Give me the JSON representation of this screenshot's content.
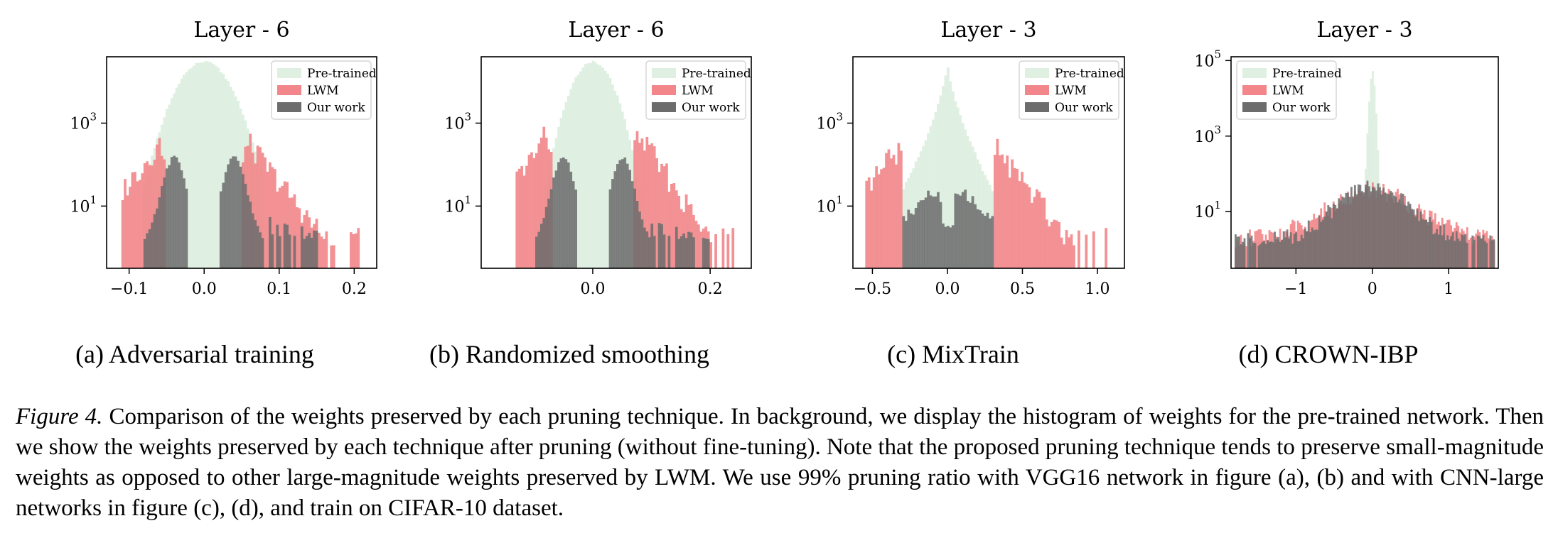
{
  "colors": {
    "pretrained": "#dff0e2",
    "lwm": "#f2868a",
    "ours": "#6c6c6c",
    "axis": "#000000"
  },
  "legend": [
    "Pre-trained",
    "LWM",
    "Our work"
  ],
  "panels": [
    {
      "id": "a",
      "title": "Layer - 6",
      "subcaption": "(a) Adversarial training"
    },
    {
      "id": "b",
      "title": "Layer - 6",
      "subcaption": "(b) Randomized smoothing"
    },
    {
      "id": "c",
      "title": "Layer - 3",
      "subcaption": "(c) MixTrain"
    },
    {
      "id": "d",
      "title": "Layer - 3",
      "subcaption": "(d) CROWN-IBP"
    }
  ],
  "caption": {
    "label": "Figure 4.",
    "text": "Comparison of the weights preserved by each pruning technique. In background, we display the histogram of weights for the pre-trained network. Then we show the weights preserved by each technique after pruning (without fine-tuning). Note that the proposed pruning technique tends to preserve small-magnitude weights as opposed to other large-magnitude weights preserved by LWM. We use 99% pruning ratio with VGG16 network in figure (a), (b) and with CNN-large networks in figure (c), (d), and train on CIFAR-10 dataset."
  },
  "chart_data": [
    {
      "type": "histogram",
      "title": "Layer - 6",
      "xlim": [
        -0.13,
        0.23
      ],
      "xticks": [
        -0.1,
        0.0,
        0.1,
        0.2
      ],
      "xtick_labels": [
        "−0.1",
        "0.0",
        "0.1",
        "0.2"
      ],
      "yscale": "log",
      "ylim_exp": [
        -0.5,
        4.6
      ],
      "yticks_exp": [
        1,
        3
      ],
      "legend_position": "top-right",
      "series": [
        {
          "name": "Pre-trained",
          "peak_x": 0.0,
          "peak_count": 30000,
          "x_range": [
            -0.08,
            0.08
          ]
        },
        {
          "name": "LWM",
          "modes": [
            -0.06,
            0.06
          ],
          "mode_count": 300,
          "x_range": [
            -0.11,
            0.21
          ],
          "center_gap": [
            -0.05,
            0.05
          ]
        },
        {
          "name": "Our work",
          "modes": [
            -0.04,
            0.04
          ],
          "mode_count": 150,
          "x_range": [
            -0.1,
            0.15
          ]
        }
      ]
    },
    {
      "type": "histogram",
      "title": "Layer - 6",
      "xlim": [
        -0.19,
        0.27
      ],
      "xticks": [
        0.0,
        0.2
      ],
      "xtick_labels": [
        "0.0",
        "0.2"
      ],
      "yscale": "log",
      "ylim_exp": [
        -0.5,
        4.6
      ],
      "yticks_exp": [
        1,
        3
      ],
      "legend_position": "top-right",
      "series": [
        {
          "name": "Pre-trained",
          "peak_x": 0.0,
          "peak_count": 30000,
          "x_range": [
            -0.08,
            0.08
          ]
        },
        {
          "name": "LWM",
          "modes": [
            -0.08,
            0.08
          ],
          "mode_count": 500,
          "x_range": [
            -0.13,
            0.24
          ],
          "center_gap": [
            -0.07,
            0.07
          ]
        },
        {
          "name": "Our work",
          "modes": [
            -0.05,
            0.05
          ],
          "mode_count": 150,
          "x_range": [
            -0.12,
            0.2
          ]
        }
      ]
    },
    {
      "type": "histogram",
      "title": "Layer - 3",
      "xlim": [
        -0.63,
        1.18
      ],
      "xticks": [
        -0.5,
        0.0,
        0.5,
        1.0
      ],
      "xtick_labels": [
        "−0.5",
        "0.0",
        "0.5",
        "1.0"
      ],
      "yscale": "log",
      "ylim_exp": [
        -0.5,
        4.6
      ],
      "yticks_exp": [
        1,
        3
      ],
      "legend_position": "top-right",
      "series": [
        {
          "name": "Pre-trained",
          "peak_x": 0.0,
          "peak_count": 30000,
          "x_range": [
            -0.3,
            0.3
          ]
        },
        {
          "name": "LWM",
          "modes": [
            -0.3,
            0.3
          ],
          "mode_count": 300,
          "x_range": [
            -0.55,
            1.07
          ],
          "center_gap": [
            -0.3,
            0.3
          ]
        },
        {
          "name": "Our work",
          "modes": [
            -0.1,
            0.1
          ],
          "mode_count": 20,
          "x_range": [
            -0.3,
            0.3
          ]
        }
      ]
    },
    {
      "type": "histogram",
      "title": "Layer - 3",
      "xlim": [
        -1.85,
        1.65
      ],
      "xticks": [
        -1,
        0,
        1
      ],
      "xtick_labels": [
        "−1",
        "0",
        "1"
      ],
      "yscale": "log",
      "ylim_exp": [
        -0.5,
        5.1
      ],
      "yticks_exp": [
        1,
        3,
        5
      ],
      "legend_position": "top-left",
      "series": [
        {
          "name": "Pre-trained",
          "peak_x": 0.0,
          "peak_count": 50000,
          "x_range": [
            -0.2,
            0.2
          ]
        },
        {
          "name": "LWM",
          "modes": [
            -0.5,
            0.5
          ],
          "mode_count": 20,
          "x_range": [
            -1.8,
            1.6
          ]
        },
        {
          "name": "Our work",
          "modes": [
            -0.1,
            0.1
          ],
          "mode_count": 30,
          "x_range": [
            -1.8,
            1.6
          ]
        }
      ]
    }
  ]
}
